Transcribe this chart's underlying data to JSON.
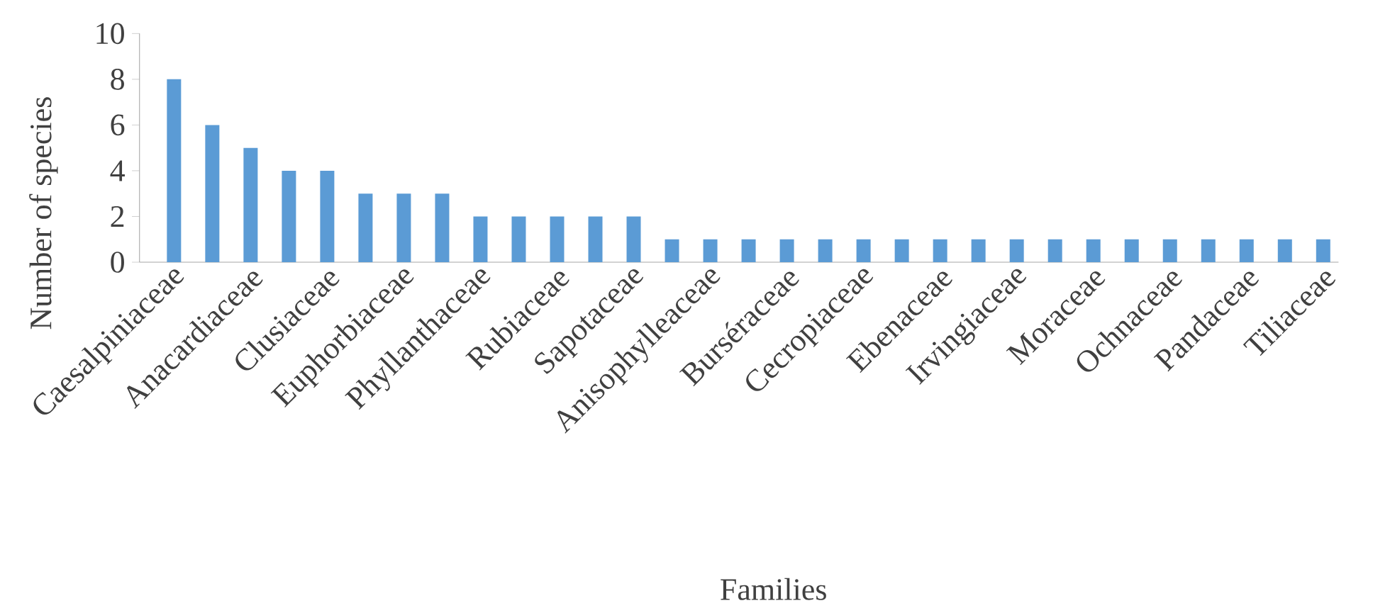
{
  "chart_data": {
    "type": "bar",
    "xlabel": "Families",
    "ylabel": "Number of species",
    "categories": [
      "Caesalpiniaceae",
      null,
      "Anacardiaceae",
      null,
      "Clusiaceae",
      null,
      "Euphorbiaceae",
      null,
      "Phyllanthaceae",
      null,
      "Rubiaceae",
      null,
      "Sapotaceae",
      null,
      "Anisophylleaceae",
      null,
      "Burséraceae",
      null,
      "Cecropiaceae",
      null,
      "Ebenaceae",
      null,
      "Irvingiaceae",
      null,
      "Moraceae",
      null,
      "Ochnaceae",
      null,
      "Pandaceae",
      null,
      "Tiliaceae"
    ],
    "values": [
      8,
      6,
      5,
      4,
      4,
      3,
      3,
      3,
      2,
      2,
      2,
      2,
      2,
      1,
      1,
      1,
      1,
      1,
      1,
      1,
      1,
      1,
      1,
      1,
      1,
      1,
      1,
      1,
      1,
      1,
      1
    ],
    "color": "#5b9bd5",
    "ylim": [
      0,
      10
    ],
    "yticks": [
      0,
      2,
      4,
      6,
      8,
      10
    ],
    "grid": false
  }
}
